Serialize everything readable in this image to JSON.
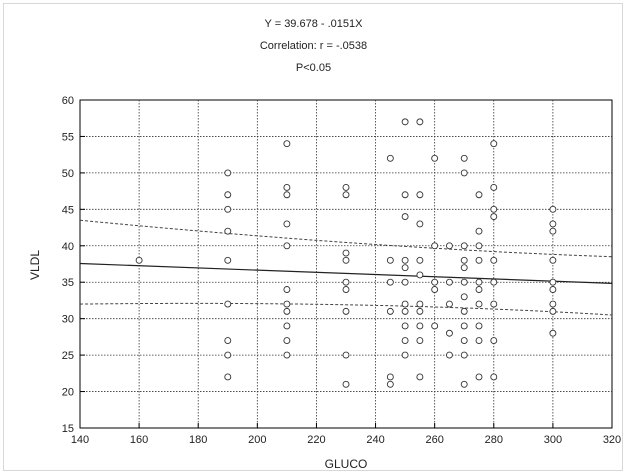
{
  "header": {
    "equation": "Y = 39.678 - .0151X",
    "correlation": "Correlation: r = -.0538",
    "p_value": "P<0.05"
  },
  "chart_data": {
    "type": "scatter",
    "xlabel": "GLUCO",
    "ylabel": "VLDL",
    "xlim": [
      140,
      320
    ],
    "ylim": [
      15,
      60
    ],
    "x_ticks": [
      140,
      160,
      180,
      200,
      220,
      240,
      260,
      280,
      300,
      320
    ],
    "y_ticks": [
      15,
      20,
      25,
      30,
      35,
      40,
      45,
      50,
      55,
      60
    ],
    "grid": true,
    "regression": {
      "intercept": 39.678,
      "slope": -0.0151
    },
    "confidence_band": {
      "x": [
        140,
        320
      ],
      "upper": [
        43.5,
        38.5
      ],
      "lower": [
        32,
        30.5
      ]
    },
    "points": [
      [
        160,
        38
      ],
      [
        190,
        50
      ],
      [
        190,
        47
      ],
      [
        190,
        45
      ],
      [
        190,
        42
      ],
      [
        190,
        38
      ],
      [
        190,
        32
      ],
      [
        190,
        27
      ],
      [
        190,
        25
      ],
      [
        190,
        22
      ],
      [
        210,
        54
      ],
      [
        210,
        48
      ],
      [
        210,
        47
      ],
      [
        210,
        43
      ],
      [
        210,
        40
      ],
      [
        210,
        34
      ],
      [
        210,
        32
      ],
      [
        210,
        31
      ],
      [
        210,
        29
      ],
      [
        210,
        27
      ],
      [
        210,
        25
      ],
      [
        230,
        48
      ],
      [
        230,
        47
      ],
      [
        230,
        39
      ],
      [
        230,
        38
      ],
      [
        230,
        35
      ],
      [
        230,
        34
      ],
      [
        230,
        31
      ],
      [
        230,
        25
      ],
      [
        230,
        21
      ],
      [
        245,
        52
      ],
      [
        245,
        38
      ],
      [
        245,
        35
      ],
      [
        245,
        31
      ],
      [
        245,
        22
      ],
      [
        245,
        21
      ],
      [
        250,
        57
      ],
      [
        250,
        47
      ],
      [
        250,
        44
      ],
      [
        250,
        38
      ],
      [
        250,
        37
      ],
      [
        250,
        35
      ],
      [
        250,
        32
      ],
      [
        250,
        31
      ],
      [
        250,
        29
      ],
      [
        250,
        27
      ],
      [
        250,
        25
      ],
      [
        255,
        57
      ],
      [
        255,
        47
      ],
      [
        255,
        43
      ],
      [
        255,
        38
      ],
      [
        255,
        36
      ],
      [
        255,
        32
      ],
      [
        255,
        31
      ],
      [
        255,
        29
      ],
      [
        255,
        27
      ],
      [
        255,
        22
      ],
      [
        260,
        52
      ],
      [
        260,
        40
      ],
      [
        260,
        35
      ],
      [
        260,
        34
      ],
      [
        260,
        29
      ],
      [
        265,
        40
      ],
      [
        265,
        35
      ],
      [
        265,
        32
      ],
      [
        265,
        28
      ],
      [
        265,
        25
      ],
      [
        270,
        52
      ],
      [
        270,
        50
      ],
      [
        270,
        40
      ],
      [
        270,
        38
      ],
      [
        270,
        37
      ],
      [
        270,
        35
      ],
      [
        270,
        33
      ],
      [
        270,
        31
      ],
      [
        270,
        29
      ],
      [
        270,
        27
      ],
      [
        270,
        25
      ],
      [
        270,
        21
      ],
      [
        275,
        47
      ],
      [
        275,
        42
      ],
      [
        275,
        40
      ],
      [
        275,
        38
      ],
      [
        275,
        35
      ],
      [
        275,
        34
      ],
      [
        275,
        32
      ],
      [
        275,
        29
      ],
      [
        275,
        27
      ],
      [
        275,
        22
      ],
      [
        280,
        54
      ],
      [
        280,
        48
      ],
      [
        280,
        45
      ],
      [
        280,
        44
      ],
      [
        280,
        38
      ],
      [
        280,
        35
      ],
      [
        280,
        32
      ],
      [
        280,
        27
      ],
      [
        280,
        22
      ],
      [
        300,
        45
      ],
      [
        300,
        43
      ],
      [
        300,
        42
      ],
      [
        300,
        38
      ],
      [
        300,
        35
      ],
      [
        300,
        34
      ],
      [
        300,
        32
      ],
      [
        300,
        31
      ],
      [
        300,
        28
      ]
    ]
  }
}
